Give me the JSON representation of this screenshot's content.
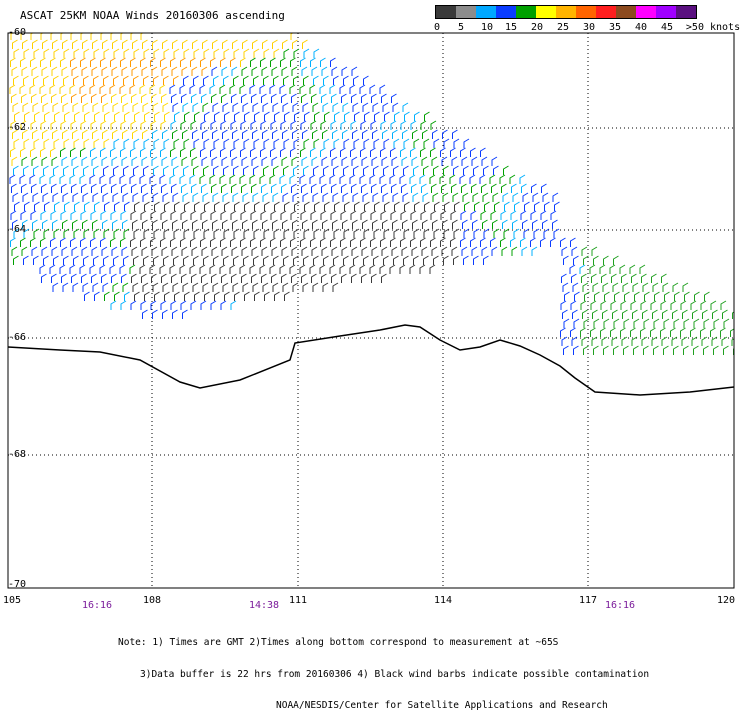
{
  "title": "ASCAT 25KM NOAA Winds 20160306 ascending",
  "colorbar": {
    "colors": [
      "#3a3a3a",
      "#8c8c8c",
      "#00a8ff",
      "#0a3cff",
      "#00a000",
      "#ffff00",
      "#ffb400",
      "#ff6400",
      "#ff1e1e",
      "#8c4a1e",
      "#ff00ff",
      "#a000ff",
      "#5a1080"
    ],
    "labels": [
      "0",
      "5",
      "10",
      "15",
      "20",
      "25",
      "30",
      "35",
      "40",
      "45",
      ">50 knots"
    ]
  },
  "lat_labels": [
    "-60",
    "-62",
    "-64",
    "-66",
    "-68",
    "-70"
  ],
  "lon_labels": [
    "105",
    "108",
    "111",
    "114",
    "117",
    "120"
  ],
  "time_labels": [
    "16:16",
    "14:38",
    "16:16"
  ],
  "notes": [
    "Note: 1) Times are GMT 2)Times along bottom correspond to measurement at ~65S",
    "3)Data buffer is 22 hrs from 20160306 4) Black wind barbs indicate possible contamination",
    "NOAA/NESDIS/Center for Satellite Applications and Research"
  ]
}
